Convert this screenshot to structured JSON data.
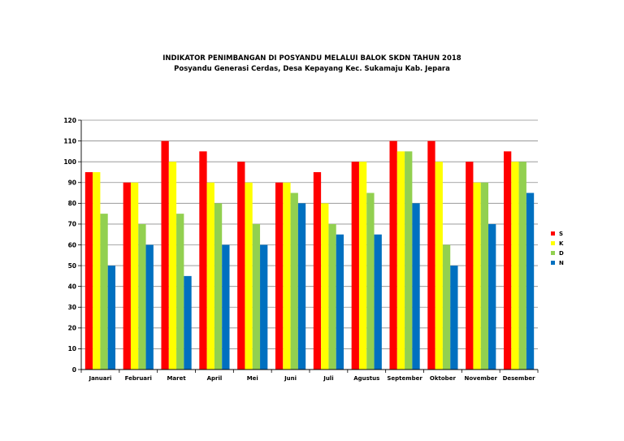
{
  "chart_data": {
    "type": "bar",
    "title": "INDIKATOR PENIMBANGAN DI POSYANDU MELALUI BALOK SKDN TAHUN 2018",
    "subtitle": "Posyandu Generasi Cerdas, Desa Kepayang Kec. Sukamaju Kab. Jepara",
    "xlabel": "",
    "ylabel": "",
    "ylim": [
      0,
      120
    ],
    "yticks": [
      0,
      10,
      20,
      30,
      40,
      50,
      60,
      70,
      80,
      90,
      100,
      110,
      120
    ],
    "ytick_labels": [
      "0",
      "10",
      "20",
      "30",
      "40",
      "50",
      "60",
      "70",
      "80",
      "90",
      "100",
      "110",
      "120"
    ],
    "grid": true,
    "legend_position": "right",
    "categories": [
      "Januari",
      "Februari",
      "Maret",
      "April",
      "Mei",
      "Juni",
      "Juli",
      "Agustus",
      "September",
      "Oktober",
      "November",
      "Desember"
    ],
    "series": [
      {
        "name": "S",
        "color": "#ff0000",
        "values": [
          95,
          90,
          110,
          105,
          100,
          90,
          95,
          100,
          110,
          110,
          100,
          105
        ]
      },
      {
        "name": "K",
        "color": "#ffff00",
        "values": [
          95,
          90,
          100,
          90,
          90,
          90,
          80,
          100,
          105,
          100,
          90,
          100
        ]
      },
      {
        "name": "D",
        "color": "#92d050",
        "values": [
          75,
          70,
          75,
          80,
          70,
          85,
          70,
          85,
          105,
          60,
          90,
          100
        ]
      },
      {
        "name": "N",
        "color": "#0070c0",
        "values": [
          50,
          60,
          45,
          60,
          60,
          80,
          65,
          65,
          80,
          50,
          70,
          85
        ]
      }
    ]
  }
}
